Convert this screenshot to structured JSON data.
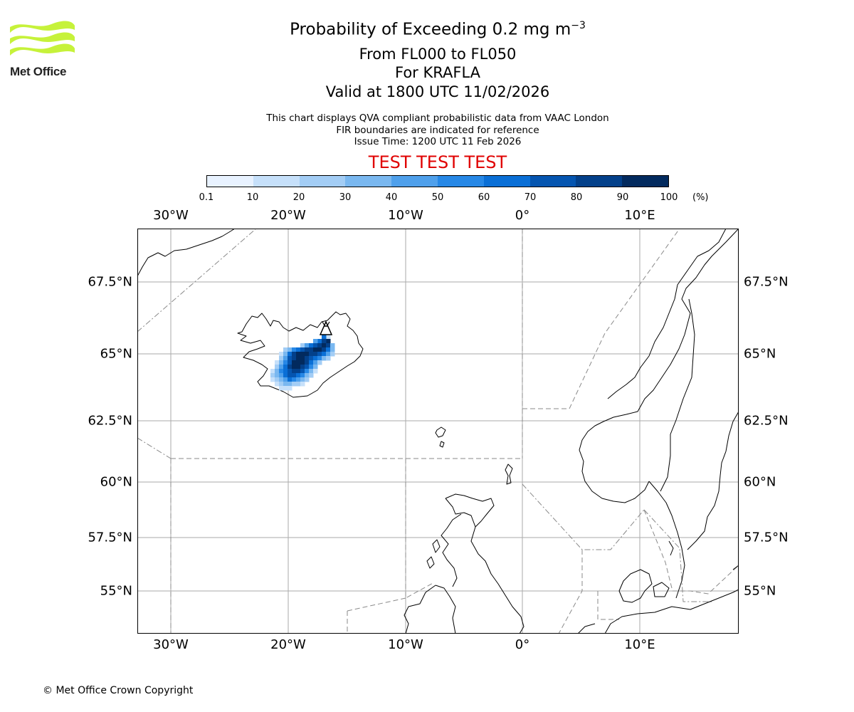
{
  "header": {
    "logo_text": "Met Office",
    "title_prefix": "Probability of Exceeding 0.2 mg m",
    "title_superscript": "−3",
    "line2": "From FL000 to FL050",
    "line3": "For KRAFLA",
    "line4": "Valid at 1800 UTC 11/02/2026",
    "desc1": "This chart displays QVA compliant probabilistic data from VAAC London",
    "desc2": "FIR boundaries are indicated for reference",
    "desc3": "Issue Time: 1200 UTC 11 Feb 2026",
    "test_banner": "TEST TEST TEST"
  },
  "colors": {
    "test_banner": "#e00000",
    "colorbar": [
      "#e8f2ff",
      "#c6e0fa",
      "#a3cdf5",
      "#7ab8f0",
      "#4fa0eb",
      "#2788e6",
      "#0a6fd6",
      "#0555b0",
      "#03408a",
      "#022a5e"
    ]
  },
  "colorbar": {
    "ticks": [
      "0.1",
      "10",
      "20",
      "30",
      "40",
      "50",
      "60",
      "70",
      "80",
      "90",
      "100"
    ],
    "unit": "(%)"
  },
  "map": {
    "lon_labels": [
      "30°W",
      "20°W",
      "10°W",
      "0°",
      "10°E"
    ],
    "lat_labels": [
      "67.5°N",
      "65°N",
      "62.5°N",
      "60°N",
      "57.5°N",
      "55°N"
    ],
    "volcano": "KRAFLA",
    "volcano_icon": "volcano-icon"
  },
  "footer": {
    "copyright": "© Met Office Crown Copyright"
  }
}
